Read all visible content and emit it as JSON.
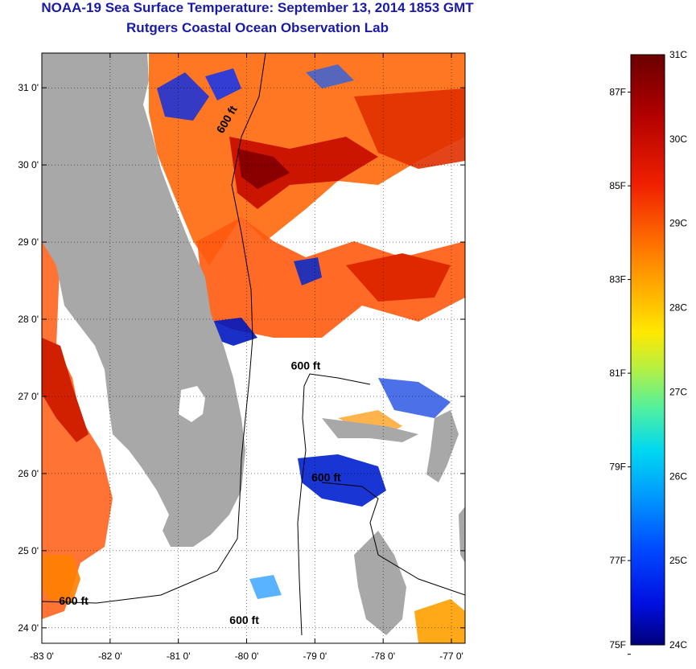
{
  "header": {
    "title": "NOAA-19 Sea Surface Temperature:  September 13, 2014 1853 GMT",
    "subtitle": "Rutgers Coastal Ocean Observation Lab"
  },
  "map": {
    "lon_range": [
      -83,
      -76.8
    ],
    "lat_range": [
      23.8,
      31.45
    ],
    "lon_ticks": [
      "-83 0'",
      "-82 0'",
      "-81 0'",
      "-80 0'",
      "-79 0'",
      "-78 0'",
      "-77 0'"
    ],
    "lat_ticks": [
      "24 0'",
      "25 0'",
      "26 0'",
      "27 0'",
      "28 0'",
      "29 0'",
      "30 0'",
      "31 0'"
    ],
    "grid": true,
    "contour_label": "600 ft",
    "contour_labels": [
      {
        "text": "600 ft",
        "lon": -79.35,
        "lat": 27.35
      },
      {
        "text": "600 ft",
        "lon": -79.05,
        "lat": 25.9
      },
      {
        "text": "600 ft",
        "lon": -82.75,
        "lat": 24.3
      },
      {
        "text": "600 ft",
        "lon": -80.25,
        "lat": 24.05
      },
      {
        "text": "600 ft",
        "lon": -80.35,
        "lat": 30.4
      }
    ]
  },
  "colorbar": {
    "celsius_labels": [
      "31C",
      "30C",
      "29C",
      "28C",
      "27C",
      "26C",
      "25C",
      "24C"
    ],
    "fahrenheit_labels": [
      "87F",
      "85F",
      "83F",
      "81F",
      "79F",
      "77F",
      "75F"
    ],
    "colors": [
      "#7a0000",
      "#c20000",
      "#ff2a00",
      "#ff8c00",
      "#ffd000",
      "#d8f000",
      "#6cff80",
      "#00e0ff",
      "#0090ff",
      "#0030ff",
      "#00008f"
    ]
  },
  "colors": {
    "land": "#a8a8a8",
    "title": "#1a1aa8"
  }
}
